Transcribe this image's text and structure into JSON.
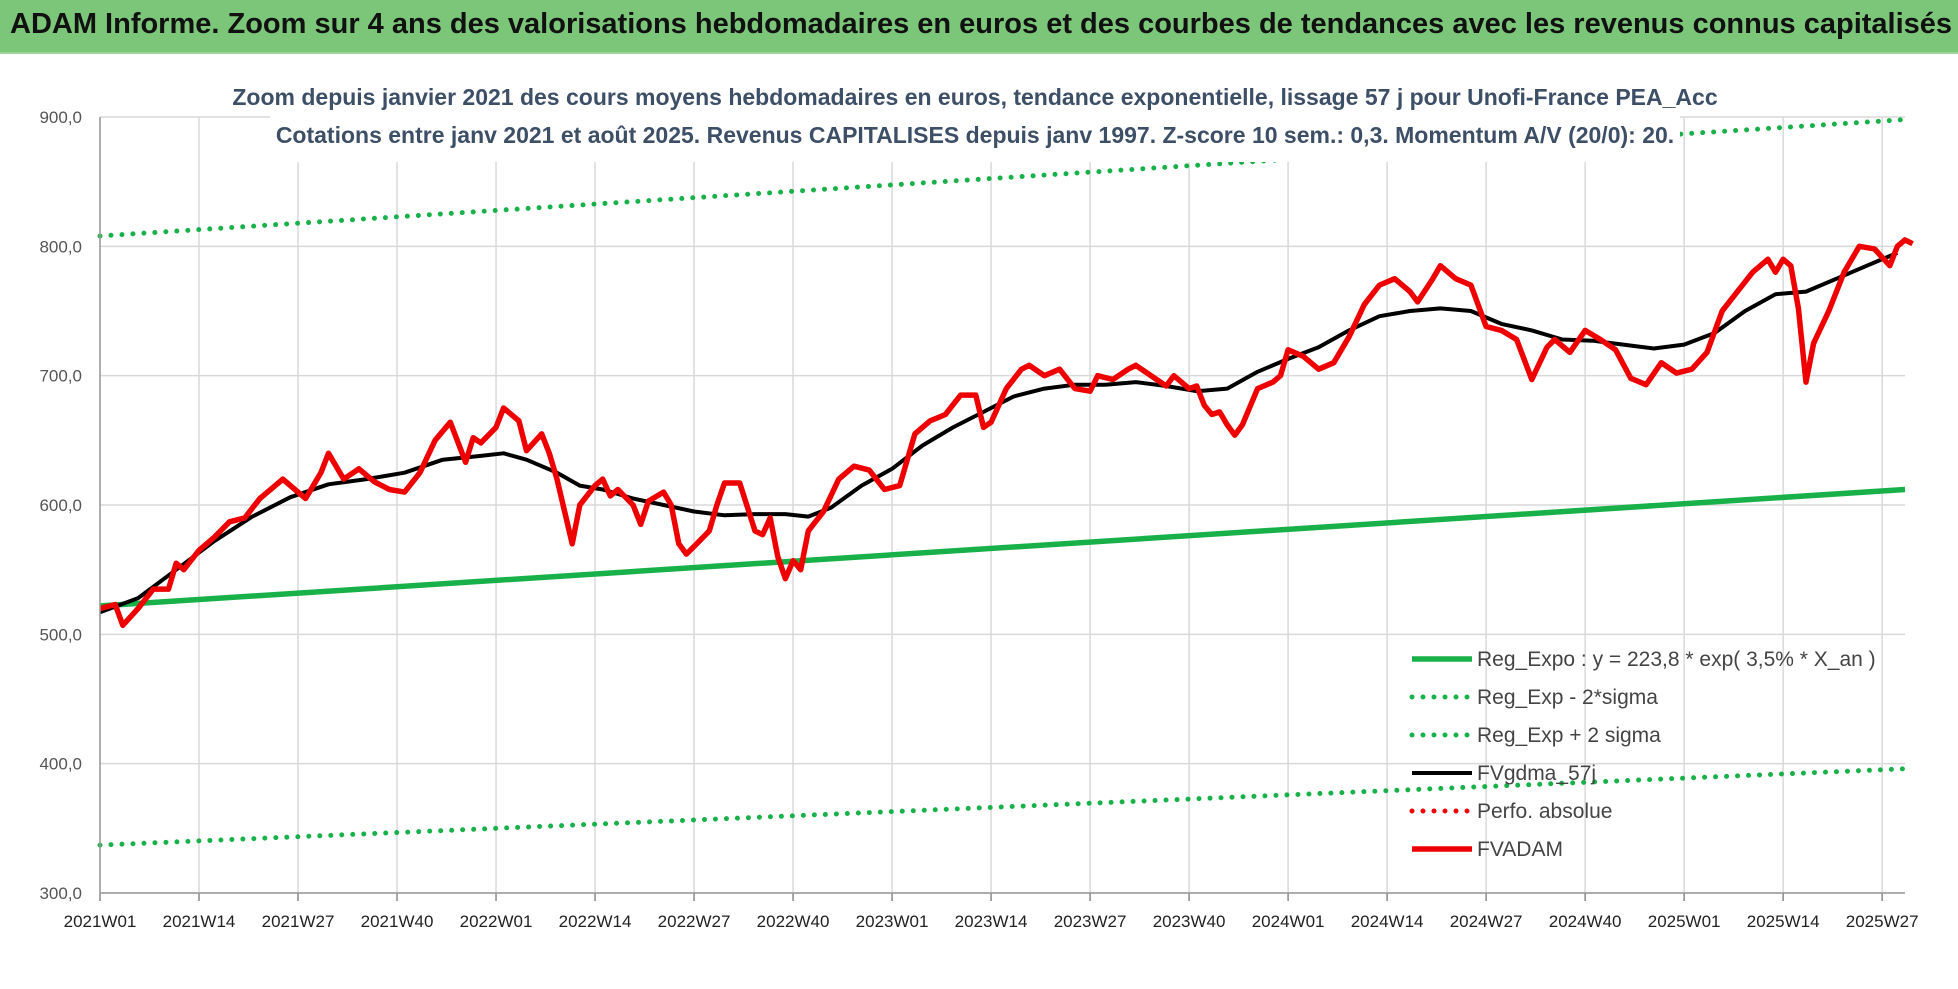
{
  "header": {
    "title": "ADAM Informe. Zoom sur 4 ans des valorisations hebdomadaires en euros et des courbes de tendances avec les revenus connus capitalisés"
  },
  "colors": {
    "header_bg": "#7cc67a",
    "green": "#18b048",
    "red": "#ee0000",
    "black": "#000000",
    "grid": "#d9d9d9",
    "subtitle": "#3d4f66"
  },
  "chart_data": {
    "type": "line",
    "title": "Zoom depuis janvier 2021 des cours moyens hebdomadaires en euros, tendance exponentielle, lissage 57 j pour Unofi-France PEA_Acc",
    "subtitle": "Cotations entre janv 2021 et août 2025. Revenus CAPITALISES depuis janv 1997. Z-score 10 sem.: 0,3. Momentum A/V (20/0): 20.",
    "ylim": [
      300,
      900
    ],
    "grid": true,
    "legend_position": "bottom-right",
    "y_ticks": [
      "900,0",
      "800,0",
      "700,0",
      "600,0",
      "500,0",
      "400,0",
      "300,0"
    ],
    "y_tick_values": [
      900,
      800,
      700,
      600,
      500,
      400,
      300
    ],
    "x_ticks": [
      "2021W01",
      "2021W14",
      "2021W27",
      "2021W40",
      "2022W01",
      "2022W14",
      "2022W27",
      "2022W40",
      "2023W01",
      "2023W14",
      "2023W27",
      "2023W40",
      "2024W01",
      "2024W14",
      "2024W27",
      "2024W40",
      "2025W01",
      "2025W14",
      "2025W27"
    ],
    "x_tick_weeks": [
      0,
      13,
      26,
      39,
      52,
      65,
      78,
      91,
      104,
      117,
      130,
      143,
      156,
      169,
      182,
      195,
      208,
      221,
      234
    ],
    "x_range_weeks": [
      0,
      237
    ],
    "series": [
      {
        "name": "Reg_Expo : y = 223,8 * exp( 3,5% * X_an )",
        "style": "solid",
        "color": "#18b048",
        "points": [
          [
            0,
            522
          ],
          [
            237,
            612
          ]
        ]
      },
      {
        "name": "Reg_Exp - 2*sigma",
        "style": "dotted",
        "color": "#18b048",
        "points": [
          [
            0,
            337
          ],
          [
            237,
            396
          ]
        ]
      },
      {
        "name": "Reg_Exp + 2 sigma",
        "style": "dotted",
        "color": "#18b048",
        "points": [
          [
            0,
            808
          ],
          [
            237,
            898
          ]
        ]
      },
      {
        "name": "FVgdma_57j",
        "style": "solid",
        "color": "#000000",
        "points": [
          [
            0,
            517
          ],
          [
            5,
            528
          ],
          [
            10,
            550
          ],
          [
            15,
            572
          ],
          [
            20,
            591
          ],
          [
            25,
            606
          ],
          [
            30,
            616
          ],
          [
            35,
            620
          ],
          [
            40,
            625
          ],
          [
            45,
            635
          ],
          [
            50,
            638
          ],
          [
            53,
            640
          ],
          [
            56,
            635
          ],
          [
            60,
            625
          ],
          [
            63,
            615
          ],
          [
            66,
            612
          ],
          [
            70,
            605
          ],
          [
            74,
            600
          ],
          [
            78,
            595
          ],
          [
            82,
            592
          ],
          [
            86,
            593
          ],
          [
            90,
            593
          ],
          [
            93,
            591
          ],
          [
            96,
            598
          ],
          [
            100,
            615
          ],
          [
            104,
            628
          ],
          [
            108,
            646
          ],
          [
            112,
            660
          ],
          [
            116,
            672
          ],
          [
            120,
            684
          ],
          [
            124,
            690
          ],
          [
            128,
            693
          ],
          [
            132,
            693
          ],
          [
            136,
            695
          ],
          [
            140,
            692
          ],
          [
            144,
            688
          ],
          [
            148,
            690
          ],
          [
            152,
            703
          ],
          [
            156,
            713
          ],
          [
            160,
            722
          ],
          [
            164,
            735
          ],
          [
            168,
            746
          ],
          [
            172,
            750
          ],
          [
            176,
            752
          ],
          [
            180,
            750
          ],
          [
            184,
            740
          ],
          [
            188,
            735
          ],
          [
            192,
            728
          ],
          [
            196,
            727
          ],
          [
            200,
            724
          ],
          [
            204,
            721
          ],
          [
            208,
            724
          ],
          [
            212,
            733
          ],
          [
            216,
            750
          ],
          [
            220,
            763
          ],
          [
            224,
            765
          ],
          [
            228,
            775
          ],
          [
            232,
            785
          ],
          [
            236,
            795
          ]
        ]
      },
      {
        "name": "Perfo. absolue",
        "style": "dotted",
        "color": "#ee0000",
        "points": []
      },
      {
        "name": "FVADAM",
        "style": "solid-thick",
        "color": "#ee0000",
        "points": [
          [
            0,
            520
          ],
          [
            2,
            523
          ],
          [
            3,
            507
          ],
          [
            5,
            520
          ],
          [
            7,
            535
          ],
          [
            9,
            535
          ],
          [
            10,
            555
          ],
          [
            11,
            550
          ],
          [
            13,
            565
          ],
          [
            15,
            575
          ],
          [
            17,
            587
          ],
          [
            19,
            590
          ],
          [
            21,
            605
          ],
          [
            23,
            615
          ],
          [
            24,
            620
          ],
          [
            26,
            610
          ],
          [
            27,
            605
          ],
          [
            29,
            625
          ],
          [
            30,
            640
          ],
          [
            32,
            620
          ],
          [
            34,
            628
          ],
          [
            36,
            618
          ],
          [
            38,
            612
          ],
          [
            40,
            610
          ],
          [
            42,
            625
          ],
          [
            44,
            650
          ],
          [
            46,
            664
          ],
          [
            48,
            633
          ],
          [
            49,
            652
          ],
          [
            50,
            648
          ],
          [
            52,
            660
          ],
          [
            53,
            675
          ],
          [
            55,
            665
          ],
          [
            56,
            642
          ],
          [
            58,
            655
          ],
          [
            59,
            640
          ],
          [
            60,
            620
          ],
          [
            62,
            570
          ],
          [
            63,
            600
          ],
          [
            65,
            615
          ],
          [
            66,
            620
          ],
          [
            67,
            607
          ],
          [
            68,
            612
          ],
          [
            70,
            600
          ],
          [
            71,
            585
          ],
          [
            72,
            603
          ],
          [
            74,
            610
          ],
          [
            75,
            600
          ],
          [
            76,
            570
          ],
          [
            77,
            562
          ],
          [
            78,
            568
          ],
          [
            80,
            580
          ],
          [
            81,
            600
          ],
          [
            82,
            617
          ],
          [
            84,
            617
          ],
          [
            86,
            580
          ],
          [
            87,
            577
          ],
          [
            88,
            590
          ],
          [
            89,
            560
          ],
          [
            90,
            543
          ],
          [
            91,
            557
          ],
          [
            92,
            550
          ],
          [
            93,
            580
          ],
          [
            95,
            595
          ],
          [
            97,
            620
          ],
          [
            99,
            630
          ],
          [
            101,
            627
          ],
          [
            103,
            612
          ],
          [
            105,
            615
          ],
          [
            107,
            655
          ],
          [
            109,
            665
          ],
          [
            111,
            670
          ],
          [
            113,
            685
          ],
          [
            115,
            685
          ],
          [
            116,
            660
          ],
          [
            117,
            664
          ],
          [
            119,
            690
          ],
          [
            121,
            705
          ],
          [
            122,
            708
          ],
          [
            124,
            700
          ],
          [
            126,
            705
          ],
          [
            128,
            690
          ],
          [
            130,
            688
          ],
          [
            131,
            700
          ],
          [
            133,
            697
          ],
          [
            135,
            705
          ],
          [
            136,
            708
          ],
          [
            138,
            700
          ],
          [
            140,
            692
          ],
          [
            141,
            700
          ],
          [
            143,
            690
          ],
          [
            144,
            692
          ],
          [
            145,
            677
          ],
          [
            146,
            670
          ],
          [
            147,
            672
          ],
          [
            148,
            662
          ],
          [
            149,
            654
          ],
          [
            150,
            662
          ],
          [
            152,
            690
          ],
          [
            154,
            695
          ],
          [
            155,
            700
          ],
          [
            156,
            720
          ],
          [
            158,
            715
          ],
          [
            160,
            705
          ],
          [
            162,
            710
          ],
          [
            164,
            730
          ],
          [
            166,
            755
          ],
          [
            168,
            770
          ],
          [
            170,
            775
          ],
          [
            172,
            765
          ],
          [
            173,
            757
          ],
          [
            175,
            775
          ],
          [
            176,
            785
          ],
          [
            178,
            775
          ],
          [
            180,
            770
          ],
          [
            182,
            738
          ],
          [
            184,
            735
          ],
          [
            186,
            728
          ],
          [
            188,
            697
          ],
          [
            190,
            722
          ],
          [
            191,
            728
          ],
          [
            193,
            718
          ],
          [
            195,
            735
          ],
          [
            197,
            728
          ],
          [
            199,
            720
          ],
          [
            201,
            698
          ],
          [
            203,
            693
          ],
          [
            205,
            710
          ],
          [
            207,
            702
          ],
          [
            209,
            705
          ],
          [
            211,
            718
          ],
          [
            213,
            750
          ],
          [
            215,
            765
          ],
          [
            217,
            780
          ],
          [
            219,
            790
          ],
          [
            220,
            780
          ],
          [
            221,
            790
          ],
          [
            222,
            785
          ],
          [
            223,
            752
          ],
          [
            224,
            695
          ],
          [
            225,
            725
          ],
          [
            227,
            750
          ],
          [
            229,
            780
          ],
          [
            231,
            800
          ],
          [
            233,
            798
          ],
          [
            235,
            785
          ],
          [
            236,
            800
          ],
          [
            237,
            805
          ],
          [
            238,
            802
          ]
        ]
      }
    ]
  }
}
